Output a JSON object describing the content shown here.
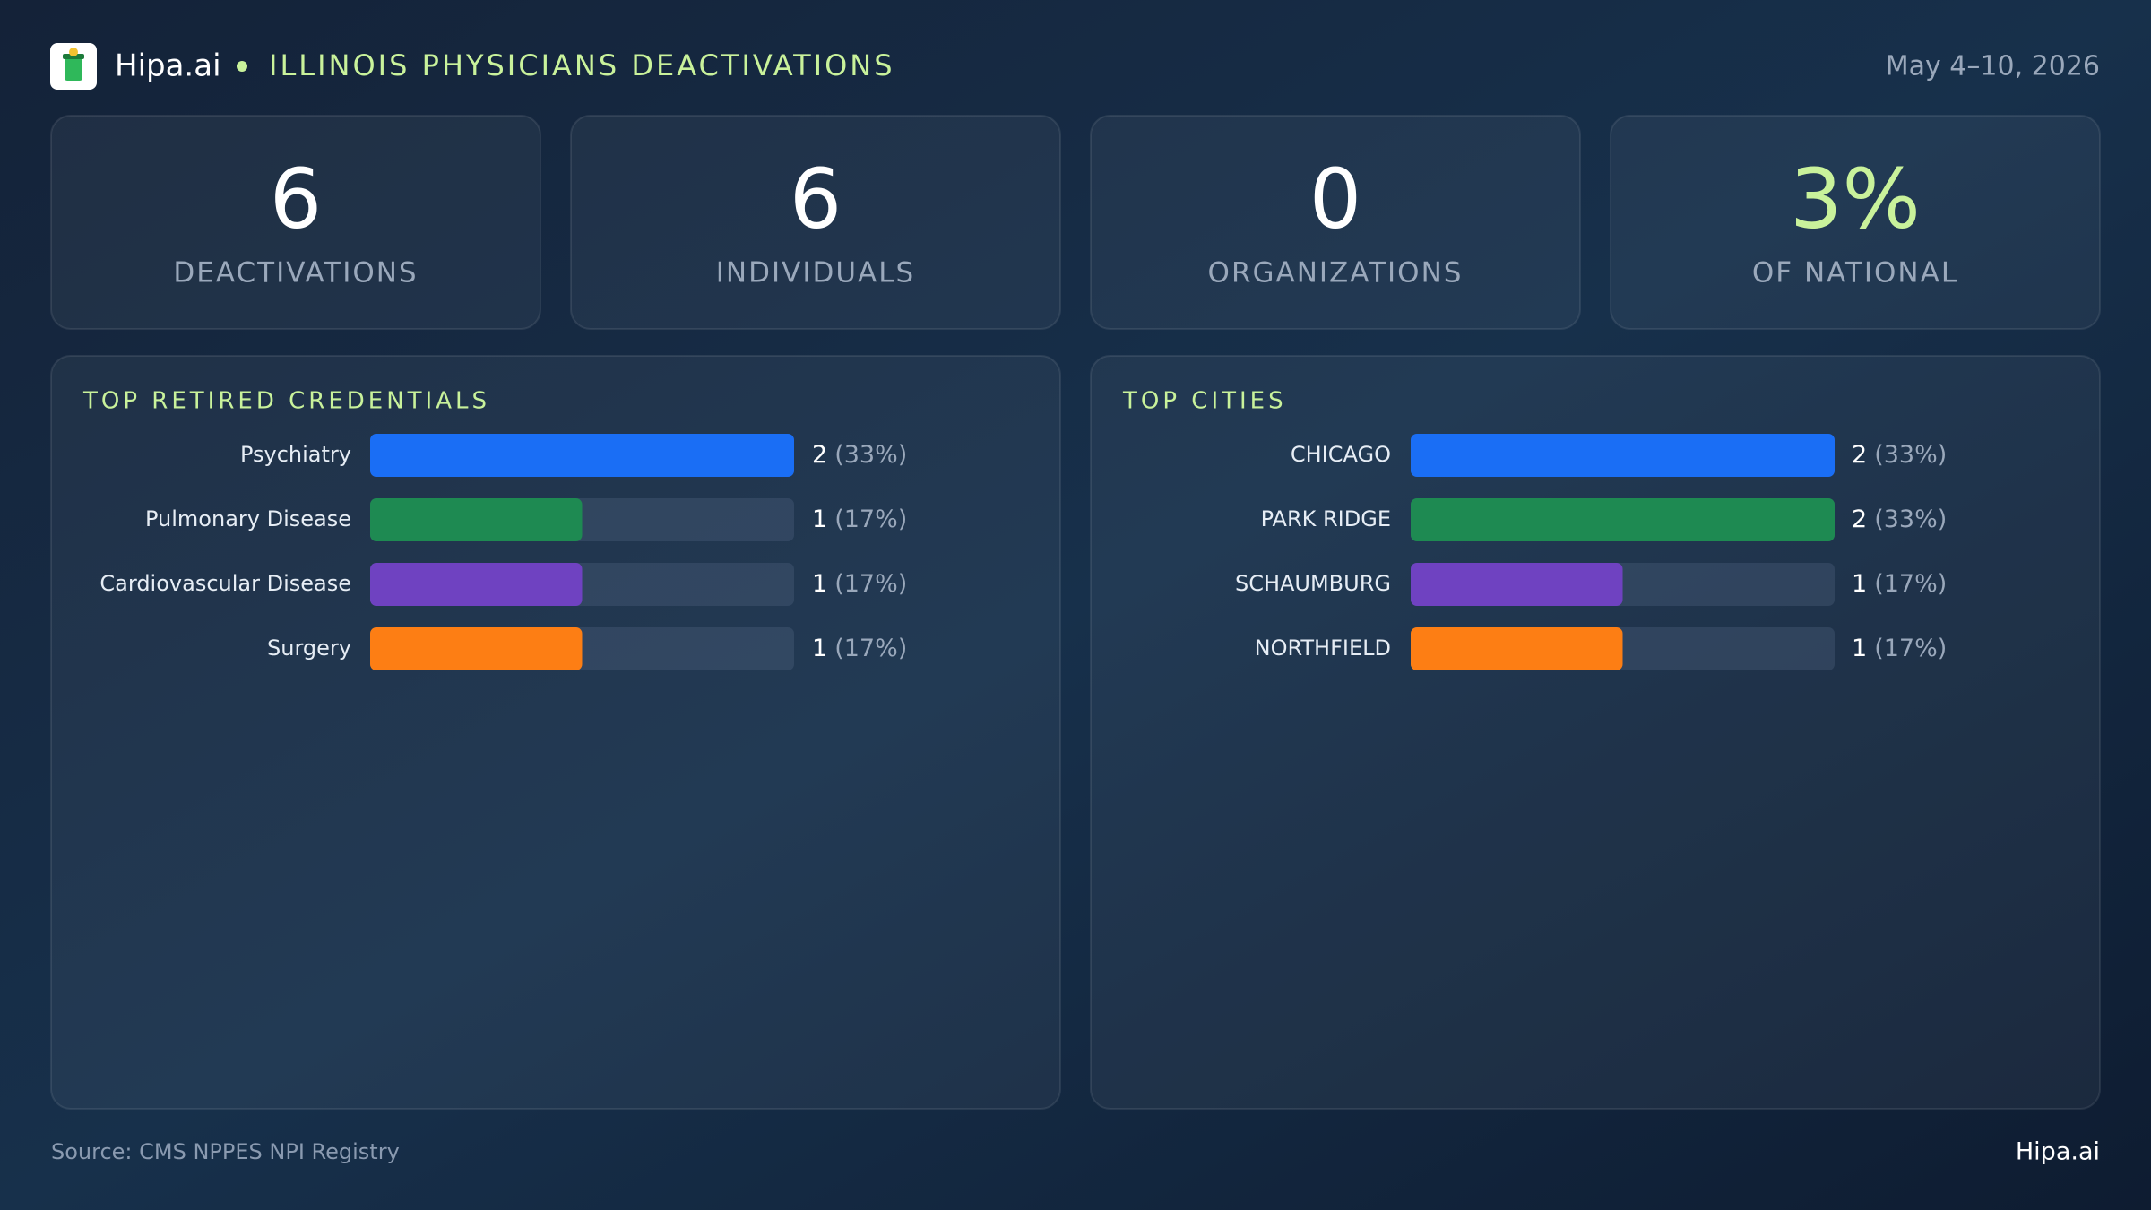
{
  "header": {
    "brand": "Hipa.ai",
    "title": "ILLINOIS PHYSICIANS DEACTIVATIONS",
    "date": "May 4–10, 2026"
  },
  "kpis": [
    {
      "value": "6",
      "label": "DEACTIVATIONS"
    },
    {
      "value": "6",
      "label": "INDIVIDUALS"
    },
    {
      "value": "0",
      "label": "ORGANIZATIONS"
    },
    {
      "value": "3%",
      "label": "OF NATIONAL"
    }
  ],
  "chart_data": [
    {
      "type": "bar",
      "orientation": "horizontal",
      "title": "TOP RETIRED CREDENTIALS",
      "categories": [
        "Psychiatry",
        "Pulmonary Disease",
        "Cardiovascular Disease",
        "Surgery"
      ],
      "values": [
        2,
        1,
        1,
        1
      ],
      "share_labels": [
        "(33%)",
        "(17%)",
        "(17%)",
        "(17%)"
      ],
      "colors": [
        "#1a6ef5",
        "#1e8a52",
        "#6f42c1",
        "#fd7e14"
      ],
      "xlim": [
        0,
        2
      ]
    },
    {
      "type": "bar",
      "orientation": "horizontal",
      "title": "TOP CITIES",
      "categories": [
        "CHICAGO",
        "PARK RIDGE",
        "SCHAUMBURG",
        "NORTHFIELD"
      ],
      "values": [
        2,
        2,
        1,
        1
      ],
      "share_labels": [
        "(33%)",
        "(33%)",
        "(17%)",
        "(17%)"
      ],
      "colors": [
        "#1a6ef5",
        "#1e8a52",
        "#6f42c1",
        "#fd7e14"
      ],
      "xlim": [
        0,
        2
      ]
    }
  ],
  "footer": {
    "source": "Source: CMS NPPES NPI Registry",
    "brand": "Hipa.ai"
  }
}
